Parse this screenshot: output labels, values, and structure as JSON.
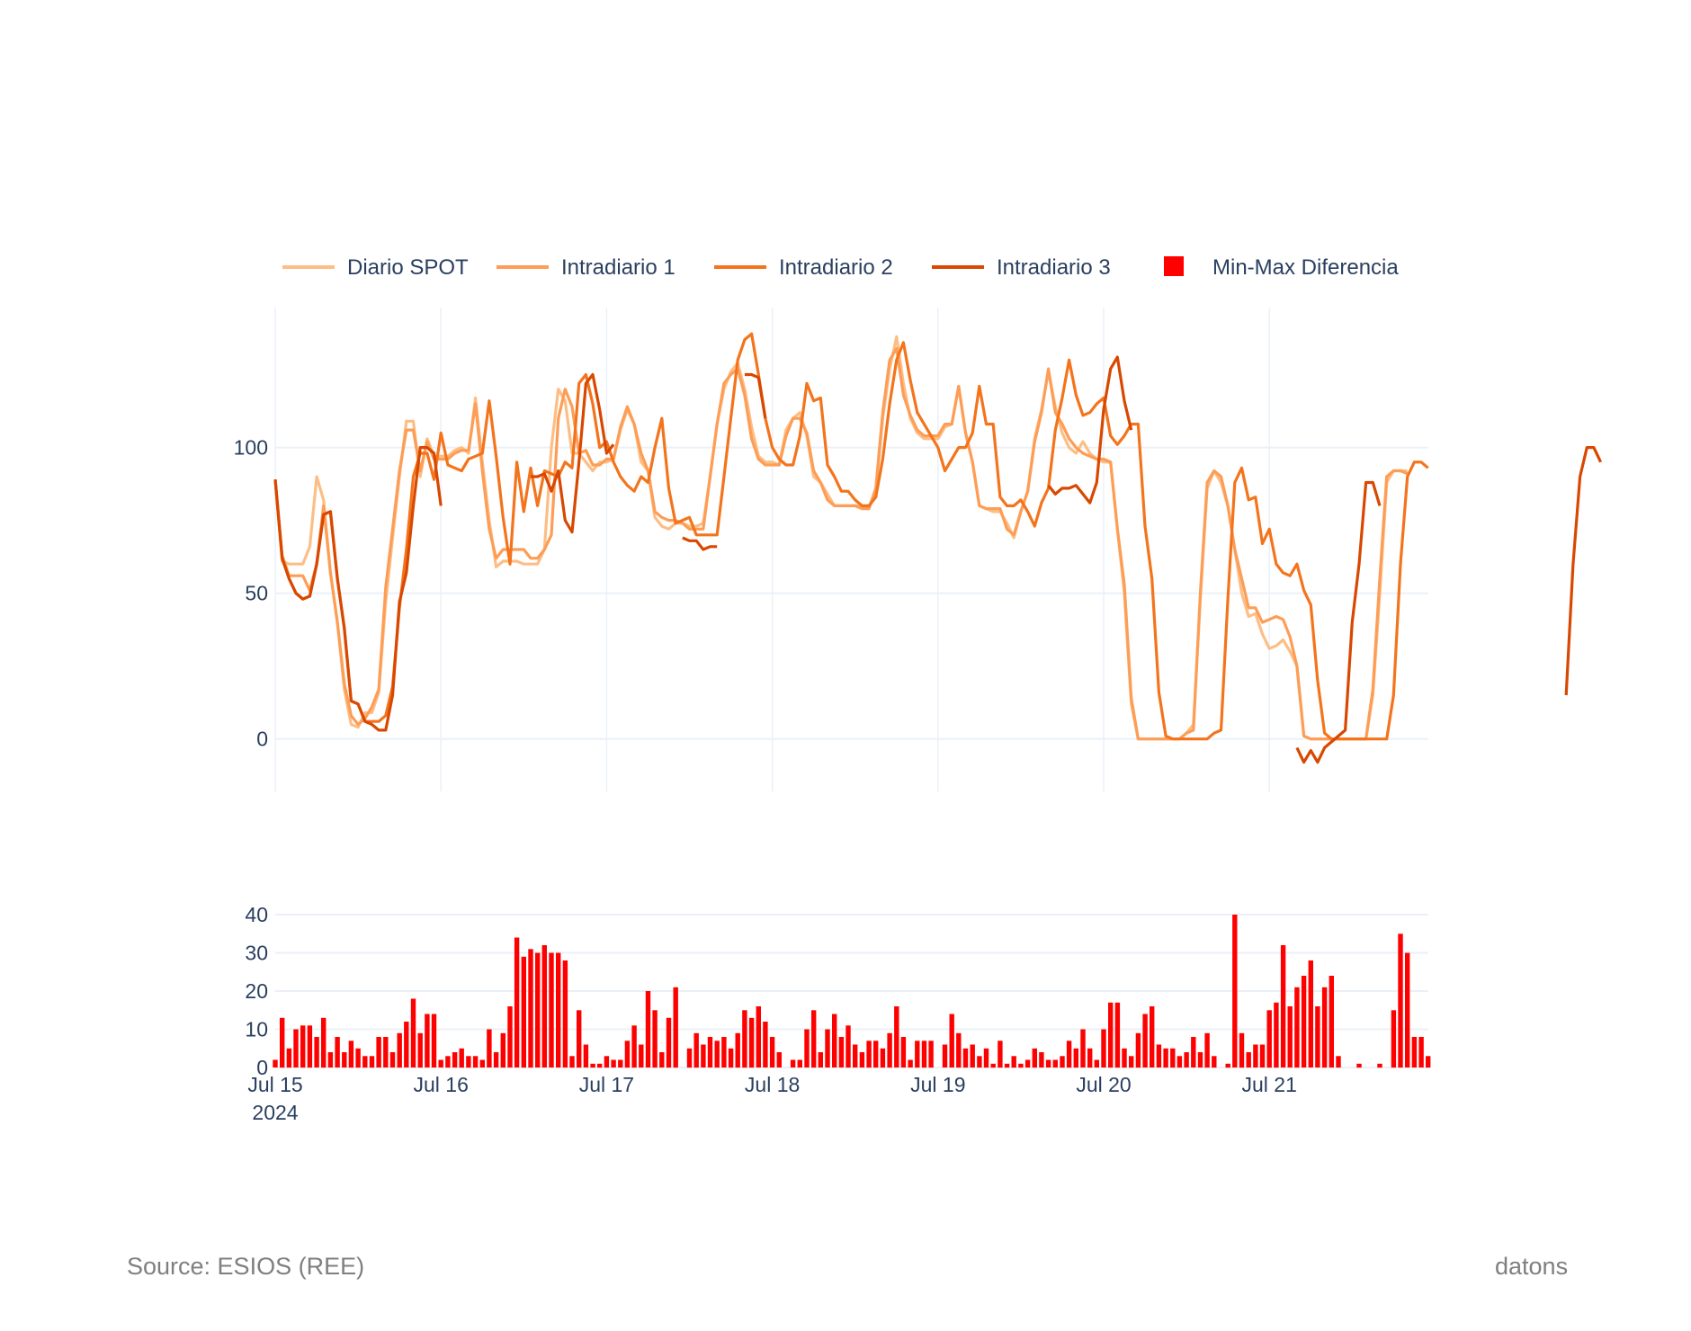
{
  "footer": {
    "source": "Source: ESIOS (REE)",
    "brand": "datons"
  },
  "chart_data": {
    "type": "line",
    "x_start": "2024-07-15 00:00",
    "x_end": "2024-07-21 23:00",
    "x_ticks": [
      {
        "date": "2024-07-15",
        "label": "Jul 15",
        "sublabel": "2024"
      },
      {
        "date": "2024-07-16",
        "label": "Jul 16"
      },
      {
        "date": "2024-07-17",
        "label": "Jul 17"
      },
      {
        "date": "2024-07-18",
        "label": "Jul 18"
      },
      {
        "date": "2024-07-19",
        "label": "Jul 19"
      },
      {
        "date": "2024-07-20",
        "label": "Jul 20"
      },
      {
        "date": "2024-07-21",
        "label": "Jul 21"
      }
    ],
    "top_panel": {
      "ylim": [
        -18,
        148
      ],
      "yticks": [
        0,
        50,
        100
      ],
      "grid": true
    },
    "bottom_panel": {
      "type": "bar",
      "ylim": [
        0,
        40
      ],
      "yticks": [
        0,
        10,
        20,
        30,
        40
      ],
      "grid": true
    },
    "legend_position": "top",
    "series": [
      {
        "name": "Diario SPOT",
        "color": "#fdbe85",
        "values": [
          89,
          61,
          60,
          60,
          60,
          66,
          90,
          82,
          57,
          40,
          17,
          5,
          4,
          9,
          9,
          16,
          47,
          69,
          90,
          109,
          109,
          90,
          103,
          97,
          97,
          97,
          99,
          100,
          98,
          117,
          95,
          75,
          59,
          61,
          61,
          61,
          60,
          60,
          60,
          65,
          100,
          120,
          116,
          98,
          98,
          95,
          92,
          95,
          95,
          96,
          106,
          113,
          108,
          95,
          92,
          76,
          73,
          72,
          74,
          74,
          73,
          73,
          74,
          90,
          108,
          120,
          126,
          129,
          120,
          107,
          97,
          95,
          95,
          94,
          106,
          110,
          112,
          104,
          90,
          88,
          84,
          80,
          80,
          80,
          80,
          80,
          79,
          85,
          110,
          127,
          138,
          122,
          110,
          105,
          103,
          103,
          103,
          107,
          108,
          121,
          105,
          95,
          80,
          79,
          78,
          78,
          74,
          69,
          78,
          85,
          103,
          113,
          126,
          114,
          105,
          100,
          98,
          102,
          98,
          96,
          95,
          95,
          72,
          50,
          12,
          0,
          0,
          0,
          0,
          0,
          0,
          0,
          2,
          5,
          48,
          86,
          92,
          88,
          80,
          65,
          50,
          42,
          43,
          36,
          31,
          32,
          34,
          30,
          25,
          1,
          0,
          0,
          0,
          0,
          0,
          0,
          0,
          0,
          0,
          15,
          50,
          88,
          92,
          92,
          92
        ]
      },
      {
        "name": "Intradiario 1",
        "color": "#fd9d56",
        "values": [
          89,
          63,
          56,
          56,
          56,
          51,
          60,
          80,
          57,
          40,
          19,
          8,
          5,
          7,
          11,
          17,
          52,
          72,
          92,
          106,
          106,
          92,
          102,
          96,
          96,
          96,
          98,
          99,
          99,
          115,
          92,
          72,
          62,
          65,
          65,
          65,
          65,
          62,
          62,
          65,
          70,
          110,
          120,
          114,
          98,
          99,
          94,
          94,
          96,
          96,
          107,
          114,
          108,
          98,
          92,
          78,
          76,
          75,
          75,
          74,
          72,
          72,
          72,
          90,
          108,
          122,
          125,
          127,
          118,
          103,
          96,
          94,
          94,
          94,
          104,
          110,
          110,
          105,
          92,
          88,
          82,
          80,
          80,
          80,
          80,
          79,
          79,
          86,
          112,
          130,
          134,
          118,
          111,
          106,
          104,
          104,
          104,
          108,
          108,
          121,
          105,
          95,
          80,
          79,
          79,
          79,
          72,
          70,
          78,
          85,
          102,
          112,
          127,
          112,
          108,
          103,
          100,
          98,
          97,
          96,
          96,
          95,
          72,
          53,
          14,
          0,
          0,
          0,
          0,
          0,
          0,
          0,
          2,
          3,
          50,
          88,
          92,
          90,
          80,
          65,
          55,
          45,
          45,
          40,
          41,
          42,
          41,
          35,
          25,
          1,
          0,
          0,
          0,
          0,
          0,
          0,
          0,
          0,
          0,
          17,
          55,
          90,
          92,
          92,
          91
        ]
      },
      {
        "name": "Intradiario 2",
        "color": "#f3741c",
        "values": [
          89,
          62,
          55,
          50,
          48,
          49,
          60,
          77,
          78,
          55,
          38,
          13,
          12,
          6,
          6,
          6,
          8,
          18,
          45,
          65,
          90,
          98,
          98,
          89,
          105,
          94,
          93,
          92,
          96,
          97,
          98,
          116,
          97,
          76,
          60,
          95,
          78,
          93,
          80,
          92,
          91,
          90,
          95,
          93,
          122,
          125,
          115,
          100,
          102,
          95,
          90,
          87,
          85,
          90,
          88,
          100,
          110,
          86,
          74,
          75,
          76,
          70,
          70,
          70,
          70,
          90,
          110,
          130,
          137,
          139,
          125,
          110,
          100,
          96,
          94,
          94,
          104,
          122,
          116,
          117,
          94,
          90,
          85,
          85,
          82,
          80,
          80,
          83,
          96,
          115,
          130,
          136,
          123,
          112,
          108,
          104,
          100,
          92,
          96,
          100,
          100,
          105,
          121,
          108,
          108,
          83,
          80,
          80,
          82,
          78,
          73,
          81,
          86,
          106,
          117,
          130,
          118,
          111,
          112,
          115,
          117,
          104,
          101,
          104,
          108,
          108,
          73,
          55,
          16,
          1,
          0,
          0,
          0,
          0,
          0,
          0,
          2,
          3,
          48,
          88,
          93,
          82,
          83,
          67,
          72,
          60,
          57,
          56,
          60,
          51,
          46,
          20,
          2,
          0,
          0,
          0,
          0,
          0,
          0,
          0,
          0,
          0,
          15,
          60,
          90,
          95,
          95,
          93
        ]
      },
      {
        "name": "Intradiario 3",
        "color": "#d84801",
        "values": [
          89,
          62,
          55,
          50,
          48,
          49,
          60,
          77,
          78,
          55,
          38,
          13,
          12,
          6,
          5,
          3,
          3,
          15,
          47,
          57,
          80,
          100,
          100,
          98,
          80,
          null,
          null,
          null,
          null,
          null,
          null,
          null,
          null,
          null,
          null,
          null,
          null,
          90,
          90,
          91,
          85,
          92,
          75,
          71,
          95,
          122,
          125,
          113,
          98,
          101,
          null,
          null,
          null,
          null,
          null,
          null,
          null,
          null,
          null,
          69,
          68,
          68,
          65,
          66,
          66,
          null,
          null,
          null,
          125,
          125,
          124,
          110,
          null,
          null,
          null,
          null,
          null,
          null,
          null,
          null,
          null,
          null,
          null,
          null,
          null,
          null,
          null,
          null,
          null,
          null,
          null,
          null,
          null,
          null,
          null,
          null,
          null,
          null,
          null,
          null,
          null,
          null,
          null,
          null,
          null,
          null,
          null,
          null,
          null,
          null,
          null,
          null,
          87,
          84,
          86,
          86,
          87,
          84,
          81,
          88,
          113,
          127,
          131,
          116,
          106,
          null,
          null,
          null,
          null,
          null,
          null,
          null,
          null,
          null,
          null,
          null,
          null,
          null,
          null,
          null,
          null,
          null,
          null,
          null,
          null,
          null,
          null,
          null,
          -3,
          -8,
          -4,
          -8,
          -3,
          -1,
          1,
          3,
          40,
          60,
          88,
          88,
          80,
          null,
          null,
          null,
          null,
          null,
          null,
          null,
          null,
          null,
          null,
          null,
          null,
          null,
          null,
          null,
          null,
          null,
          null,
          null,
          null,
          null,
          null,
          null,
          null,
          null,
          null,
          15,
          60,
          90,
          100,
          100,
          95
        ]
      },
      {
        "name": "Min-Max Diferencia",
        "color": "#ff0000",
        "type": "bar",
        "values": [
          2,
          13,
          5,
          10,
          11,
          11,
          8,
          13,
          4,
          8,
          4,
          7,
          5,
          3,
          3,
          8,
          8,
          4,
          9,
          12,
          18,
          9,
          14,
          14,
          2,
          3,
          4,
          5,
          3,
          3,
          2,
          10,
          4,
          9,
          16,
          34,
          29,
          31,
          30,
          32,
          30,
          30,
          28,
          3,
          15,
          6,
          1,
          1,
          3,
          2,
          2,
          7,
          11,
          6,
          20,
          15,
          4,
          13,
          21,
          0,
          5,
          9,
          6,
          8,
          7,
          8,
          5,
          9,
          15,
          13,
          16,
          12,
          8,
          4,
          0,
          2,
          2,
          10,
          15,
          4,
          10,
          14,
          8,
          11,
          6,
          4,
          7,
          7,
          5,
          9,
          16,
          8,
          2,
          7,
          7,
          7,
          0,
          6,
          14,
          9,
          5,
          6,
          3,
          5,
          1,
          7,
          1,
          3,
          1,
          2,
          5,
          4,
          2,
          2,
          3,
          7,
          5,
          10,
          5,
          2,
          10,
          17,
          17,
          5,
          3,
          9,
          14,
          16,
          6,
          5,
          5,
          3,
          4,
          8,
          4,
          9,
          3,
          0,
          1,
          40,
          9,
          4,
          6,
          6,
          15,
          17,
          32,
          16,
          21,
          24,
          28,
          16,
          21,
          24,
          3,
          0,
          0,
          1,
          0,
          0,
          1,
          0,
          15,
          35,
          30,
          8,
          8,
          3
        ]
      }
    ]
  }
}
